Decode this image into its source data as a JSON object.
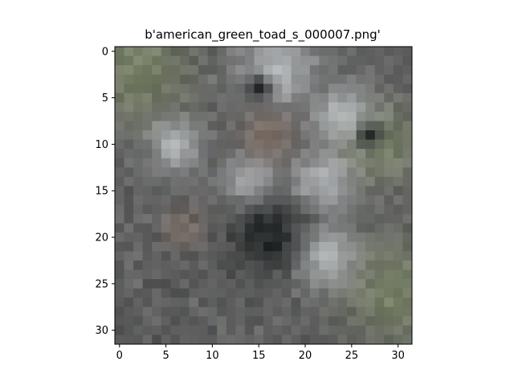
{
  "chart_data": {
    "type": "heatmap",
    "title": "b'american_green_toad_s_000007.png'",
    "xlabel": "",
    "ylabel": "",
    "xlim": [
      -0.5,
      31.5
    ],
    "ylim": [
      31.5,
      -0.5
    ],
    "x_ticks": [
      0,
      5,
      10,
      15,
      20,
      25,
      30
    ],
    "y_ticks": [
      0,
      5,
      10,
      15,
      20,
      25,
      30
    ],
    "image_size": [
      32,
      32
    ],
    "grid": false,
    "palette": {
      "dark": "#1c2020",
      "shadow": "#4a4c4e",
      "stone": "#7a7876",
      "light": "#c8cccf",
      "moss": "#7f8a6a",
      "brown": "#8a7466"
    }
  }
}
